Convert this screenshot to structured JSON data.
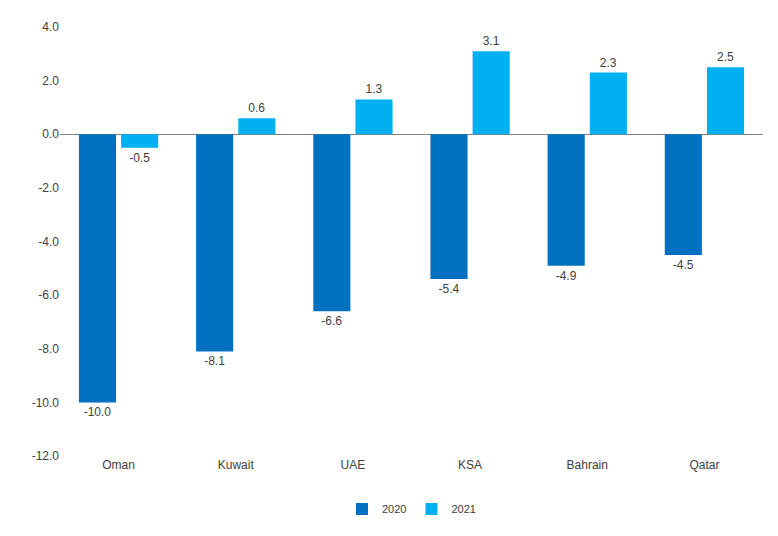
{
  "chart_data": {
    "type": "bar",
    "categories": [
      "Oman",
      "Kuwait",
      "UAE",
      "KSA",
      "Bahrain",
      "Qatar"
    ],
    "series": [
      {
        "name": "2020",
        "color": "#0070c0",
        "values": [
          -10.0,
          -8.1,
          -6.6,
          -5.4,
          -4.9,
          -4.5
        ],
        "value_labels": [
          "-10.0",
          "-8.1",
          "-6.6",
          "-5.4",
          "-4.9",
          "-4.5"
        ]
      },
      {
        "name": "2021",
        "color": "#00b0f0",
        "values": [
          -0.5,
          0.6,
          1.3,
          3.1,
          2.3,
          2.5
        ]
      }
    ],
    "ylim": [
      -12,
      4
    ],
    "yticks": [
      {
        "value": -12,
        "label": "-12.0"
      },
      {
        "value": -10,
        "label": "-10.0"
      },
      {
        "value": -8,
        "label": "-8.0"
      },
      {
        "value": -6,
        "label": "-6.0"
      },
      {
        "value": -4,
        "label": "-4.0"
      },
      {
        "value": -2,
        "label": "-2.0"
      },
      {
        "value": 0,
        "label": "0.0"
      },
      {
        "value": 2,
        "label": "2.0"
      },
      {
        "value": 4,
        "label": "4.0"
      }
    ],
    "grid": false,
    "legend": "bottom",
    "data_labels": true
  }
}
